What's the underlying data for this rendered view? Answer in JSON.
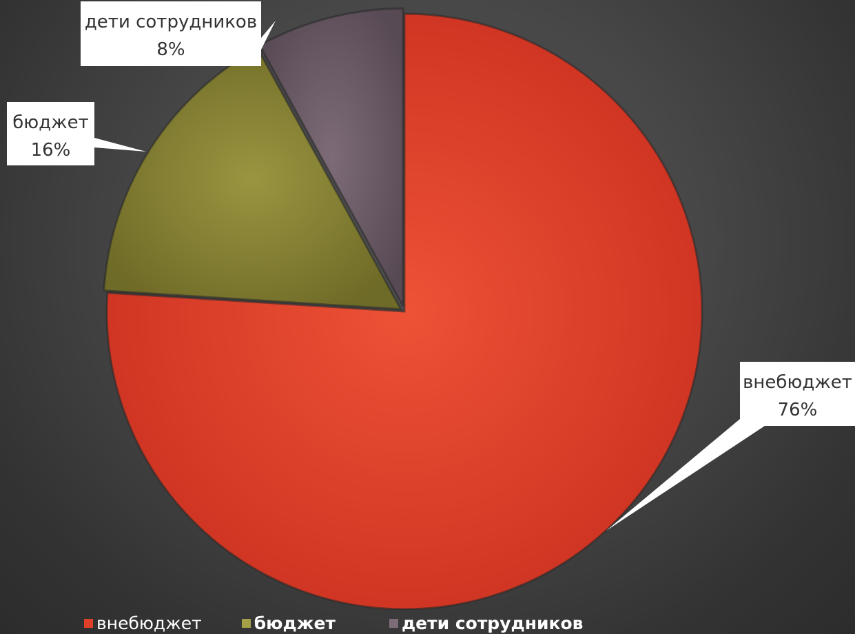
{
  "chart_data": {
    "type": "pie",
    "title": "",
    "slices": [
      {
        "label": "внебюджет",
        "value": 76,
        "value_label": "76%",
        "color": "#e0402a"
      },
      {
        "label": "бюджет",
        "value": 16,
        "value_label": "16%",
        "color": "#8a8535"
      },
      {
        "label": "дети сотрудников",
        "value": 8,
        "value_label": "8%",
        "color": "#6e5e6a"
      }
    ],
    "start_angle": "12 o'clock, clockwise",
    "data_labels": "callouts with leader lines",
    "legend_position": "bottom"
  }
}
